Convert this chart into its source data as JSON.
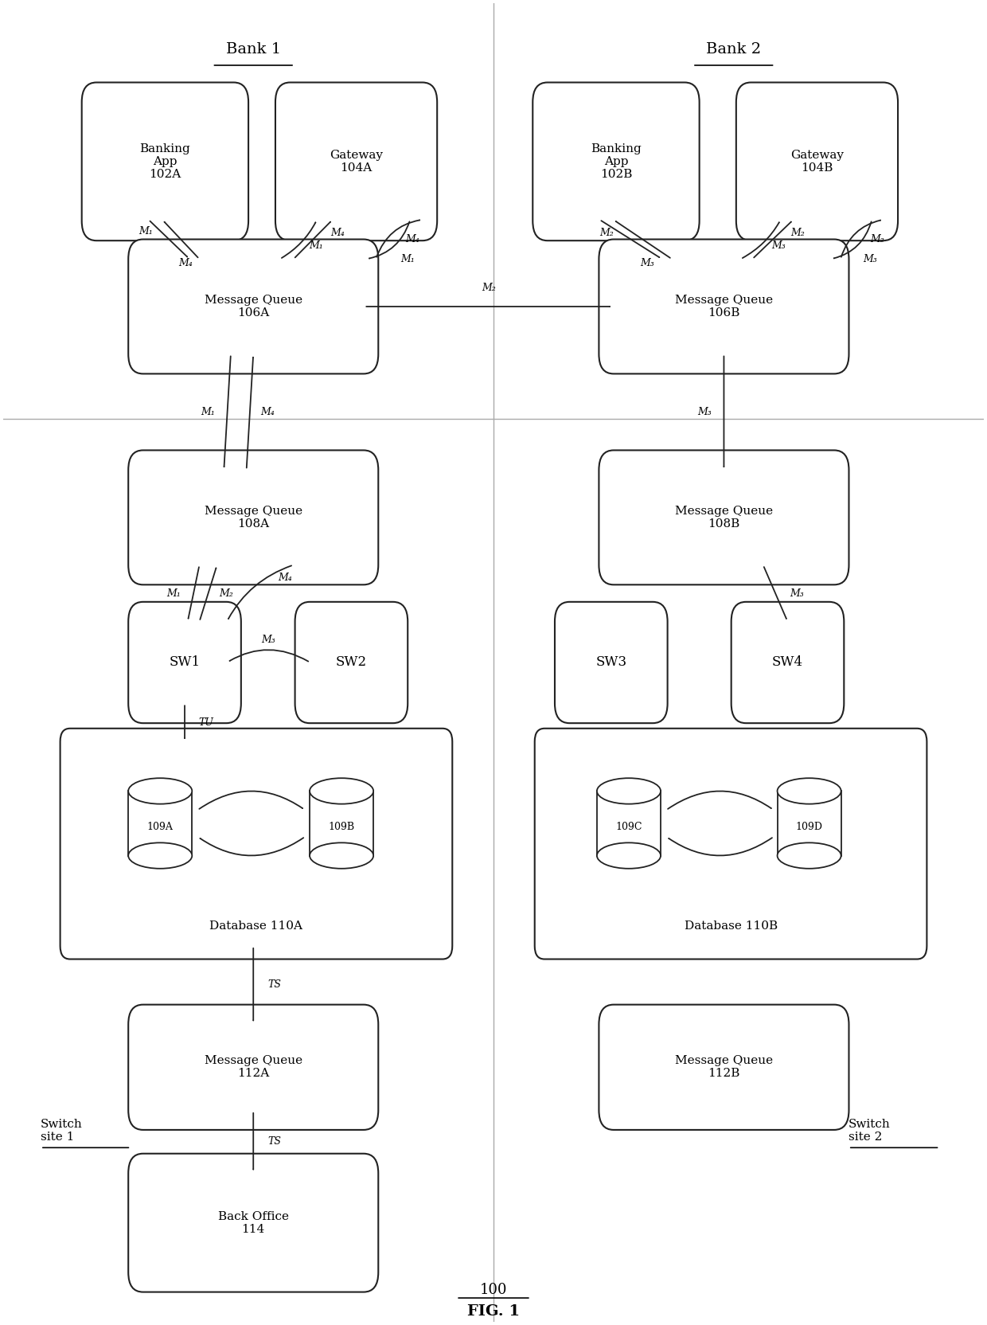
{
  "bg_color": "#ffffff",
  "bank1_label": "Bank 1",
  "bank2_label": "Bank 2",
  "switch_site1_label": "Switch\nsite 1",
  "switch_site2_label": "Switch\nsite 2",
  "fig_number": "100",
  "fig_caption": "FIG. 1"
}
